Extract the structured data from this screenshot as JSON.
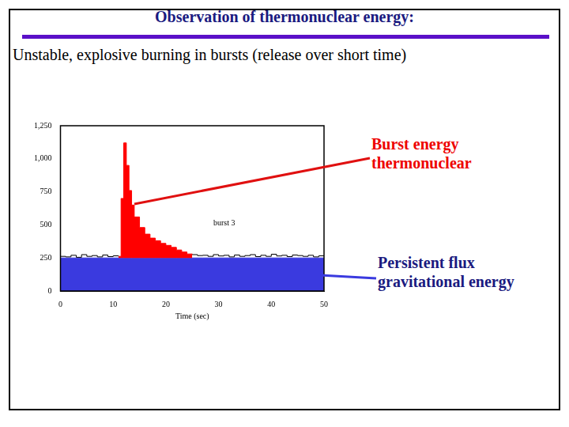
{
  "chart_data": {
    "type": "line",
    "title": "Observation of thermonuclear energy:",
    "subtitle": "Unstable, explosive burning in bursts (release over short time)",
    "x_label": "Time (sec)",
    "x": [
      0,
      1,
      2,
      3,
      4,
      5,
      6,
      7,
      8,
      9,
      10,
      11,
      11.5,
      12,
      12.5,
      13,
      13.5,
      14,
      15,
      16,
      17,
      18,
      19,
      20,
      21,
      22,
      23,
      24,
      25,
      26,
      27,
      28,
      29,
      30,
      31,
      32,
      33,
      34,
      35,
      36,
      37,
      38,
      39,
      40,
      41,
      42,
      43,
      44,
      45,
      46,
      47,
      48,
      49,
      50
    ],
    "series": [
      {
        "color": "#000000",
        "line_style": "steps",
        "type": "line",
        "values": [
          262,
          258,
          270,
          255,
          275,
          262,
          268,
          258,
          272,
          260,
          266,
          262,
          null,
          null,
          null,
          null,
          null,
          null,
          null,
          null,
          null,
          null,
          null,
          null,
          null,
          null,
          null,
          null,
          275,
          268,
          270,
          262,
          275,
          265,
          270,
          258,
          272,
          262,
          268,
          275,
          260,
          270,
          262,
          278,
          265,
          270,
          260,
          272,
          268,
          262,
          270,
          258,
          266,
          262
        ]
      },
      {
        "color": "#ff0000",
        "line_style": "steps",
        "type": "area",
        "values": [
          null,
          null,
          null,
          null,
          null,
          null,
          null,
          null,
          null,
          null,
          null,
          262,
          700,
          1120,
          950,
          760,
          650,
          560,
          480,
          430,
          400,
          380,
          360,
          345,
          330,
          310,
          295,
          280,
          275,
          null,
          null,
          null,
          null,
          null,
          null,
          null,
          null,
          null,
          null,
          null,
          null,
          null,
          null,
          null,
          null,
          null,
          null,
          null,
          null,
          null,
          null,
          null,
          null,
          null
        ]
      },
      {
        "color": "#3a3adf",
        "line_style": "solid",
        "type": "area",
        "values": [
          250,
          250,
          250,
          250,
          250,
          250,
          250,
          250,
          250,
          250,
          250,
          250,
          250,
          250,
          250,
          250,
          250,
          250,
          250,
          250,
          250,
          250,
          250,
          250,
          250,
          250,
          250,
          250,
          250,
          250,
          250,
          250,
          250,
          250,
          250,
          250,
          250,
          250,
          250,
          250,
          250,
          250,
          250,
          250,
          250,
          250,
          250,
          250,
          250,
          250,
          250,
          250,
          250,
          250
        ]
      }
    ],
    "xlim": [
      0,
      50
    ],
    "xticks": [
      0,
      10,
      20,
      30,
      40,
      50
    ],
    "ylim": [
      0,
      1250
    ],
    "yticks": [
      0,
      250,
      500,
      750,
      1000,
      1250
    ],
    "grid": false,
    "annotations": [
      {
        "text": "burst 3",
        "x": 29,
        "y": 510
      },
      {
        "text": [
          "Burst energy",
          "thermonuclear"
        ],
        "color": "#ee0000"
      },
      {
        "text": [
          "Persistent flux",
          "gravitational energy"
        ],
        "color": "#1a1a80"
      }
    ]
  }
}
